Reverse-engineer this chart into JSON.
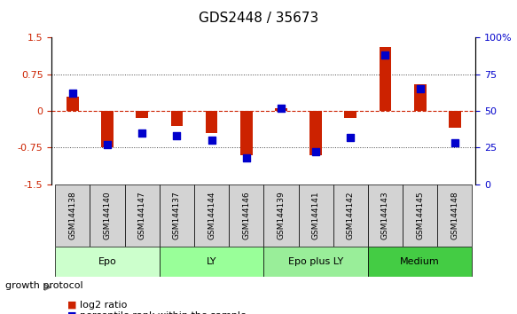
{
  "title": "GDS2448 / 35673",
  "samples": [
    "GSM144138",
    "GSM144140",
    "GSM144147",
    "GSM144137",
    "GSM144144",
    "GSM144146",
    "GSM144139",
    "GSM144141",
    "GSM144142",
    "GSM144143",
    "GSM144145",
    "GSM144148"
  ],
  "log2_ratio": [
    0.3,
    -0.75,
    -0.15,
    -0.3,
    -0.45,
    -0.9,
    0.05,
    -0.9,
    -0.15,
    1.3,
    0.55,
    -0.35
  ],
  "percentile_rank": [
    62,
    27,
    35,
    33,
    30,
    18,
    52,
    22,
    32,
    88,
    65,
    28
  ],
  "groups": [
    {
      "label": "Epo",
      "indices": [
        0,
        1,
        2
      ],
      "color": "#ccffcc"
    },
    {
      "label": "LY",
      "indices": [
        3,
        4,
        5
      ],
      "color": "#99ff99"
    },
    {
      "label": "Epo plus LY",
      "indices": [
        6,
        7,
        8
      ],
      "color": "#99ee99"
    },
    {
      "label": "Medium",
      "indices": [
        9,
        10,
        11
      ],
      "color": "#44cc44"
    }
  ],
  "ylim_left": [
    -1.5,
    1.5
  ],
  "ylim_right": [
    0,
    100
  ],
  "yticks_left": [
    -1.5,
    -0.75,
    0,
    0.75,
    1.5
  ],
  "yticks_right": [
    0,
    25,
    50,
    75,
    100
  ],
  "bar_color": "#cc2200",
  "dot_color": "#0000cc",
  "hline_color": "#cc2200",
  "dotted_color": "#444444",
  "background_color": "#ffffff"
}
